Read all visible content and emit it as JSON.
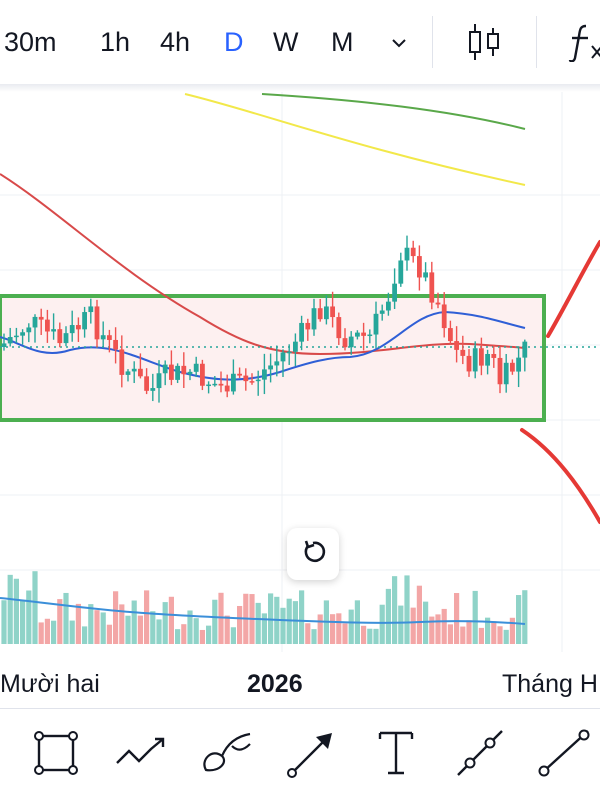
{
  "toolbar": {
    "timeframes": [
      {
        "label": "30m",
        "active": false
      },
      {
        "label": "1h",
        "active": false
      },
      {
        "label": "4h",
        "active": false
      },
      {
        "label": "D",
        "active": true
      },
      {
        "label": "W",
        "active": false
      },
      {
        "label": "M",
        "active": false
      }
    ],
    "more_icon": "chevron-down-icon",
    "chart_type_icon": "candlestick-icon",
    "indicators_icon": "function-icon"
  },
  "xaxis": {
    "labels": [
      "Mười hai",
      "2026",
      "Tháng H"
    ]
  },
  "reset_icon": "reset-icon",
  "drawing_tools": [
    "rectangle-icon",
    "polyline-icon",
    "brush-icon",
    "arrow-icon",
    "text-icon",
    "trendline-icon",
    "ray-icon"
  ],
  "colors": {
    "up": "#26a69a",
    "down": "#ef5350",
    "active": "#2962ff",
    "box": "#4caf50",
    "ma_red": "#d84a4a",
    "ma_blue": "#2f5fd6",
    "ma_yellow": "#f2e84a",
    "ma_green": "#5aa84a"
  }
}
